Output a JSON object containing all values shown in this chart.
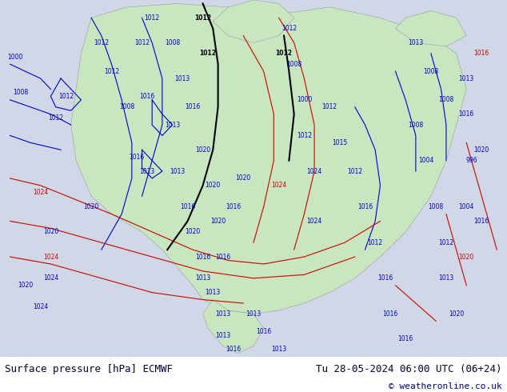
{
  "title_left": "Surface pressure [hPa] ECMWF",
  "title_right": "Tu 28-05-2024 06:00 UTC (06+24)",
  "copyright": "© weatheronline.co.uk",
  "bg_color": "#d0d8e8",
  "land_color": "#c8e6c0",
  "figsize": [
    6.34,
    4.9
  ],
  "dpi": 100,
  "footer_bg": "#ffffff",
  "footer_text_color": "#000033",
  "copyright_color": "#000080",
  "title_fontsize": 9,
  "copyright_fontsize": 8
}
